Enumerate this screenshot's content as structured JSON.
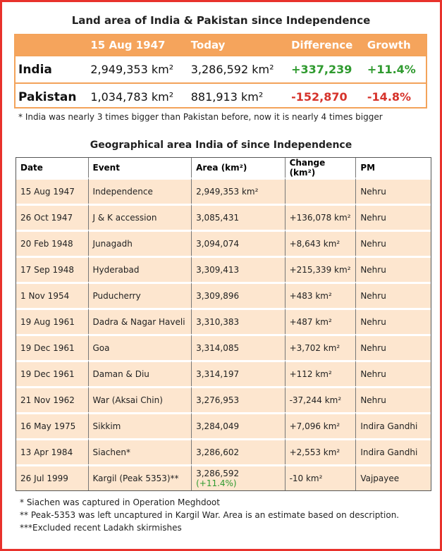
{
  "top": {
    "title": "Land area of India & Pakistan since Independence",
    "headers": [
      "15 Aug 1947",
      "Today",
      "Difference",
      "Growth"
    ],
    "rows": [
      [
        "India",
        "2,949,353 km²",
        "3,286,592 km²",
        "+337,239",
        "+11.4%"
      ],
      [
        "Pakistan",
        "1,034,783 km²",
        "881,913 km²",
        "-152,870",
        "-14.8%"
      ]
    ],
    "note": "* India was nearly 3 times bigger than Pakistan before, now it is nearly 4 times bigger"
  },
  "table": {
    "title": "Geographical area India of since Independence",
    "headers": [
      "Date",
      "Event",
      "Area (km²)",
      "Change (km²)",
      "PM"
    ],
    "rows": [
      [
        "15 Aug 1947",
        "Independence",
        "2,949,353 km²",
        null,
        "Nehru"
      ],
      [
        "26 Oct 1947",
        "J & K accession",
        "3,085,431",
        "+136,078 km²",
        "Nehru"
      ],
      [
        "20 Feb 1948",
        "Junagadh",
        "3,094,074",
        "+8,643 km²",
        "Nehru"
      ],
      [
        "17 Sep 1948",
        "Hyderabad",
        "3,309,413",
        "+215,339 km²",
        "Nehru"
      ],
      [
        "1 Nov 1954",
        "Puducherry",
        "3,309,896",
        "+483 km²",
        "Nehru"
      ],
      [
        "19 Aug 1961",
        "Dadra & Nagar Haveli",
        "3,310,383",
        "+487 km²",
        "Nehru"
      ],
      [
        "19 Dec 1961",
        "Goa",
        "3,314,085",
        "+3,702 km²",
        "Nehru"
      ],
      [
        "19 Dec 1961",
        "Daman & Diu",
        "3,314,197",
        "+112 km²",
        "Nehru"
      ],
      [
        "21 Nov 1962",
        "War (Aksai Chin)",
        "3,276,953",
        "-37,244 km²",
        "Nehru"
      ],
      [
        "16 May 1975",
        "Sikkim",
        "3,284,049",
        "+7,096 km²",
        "Indira Gandhi"
      ],
      [
        "13 Apr 1984",
        "Siachen*",
        "3,286,602",
        "+2,553 km²",
        "Indira Gandhi"
      ],
      [
        "26 Jul 1999",
        "Kargil (Peak 5353)**",
        "3,286,592",
        "-10 km²",
        "Vajpayee"
      ]
    ],
    "last_growth": "(+11.4%)"
  },
  "footnotes": [
    "* Siachen was captured in Operation Meghdoot",
    "** Peak-5353 was left uncaptured in Kargil War. Area is an estimate based on description.",
    "***Excluded recent Ladakh skirmishes"
  ]
}
